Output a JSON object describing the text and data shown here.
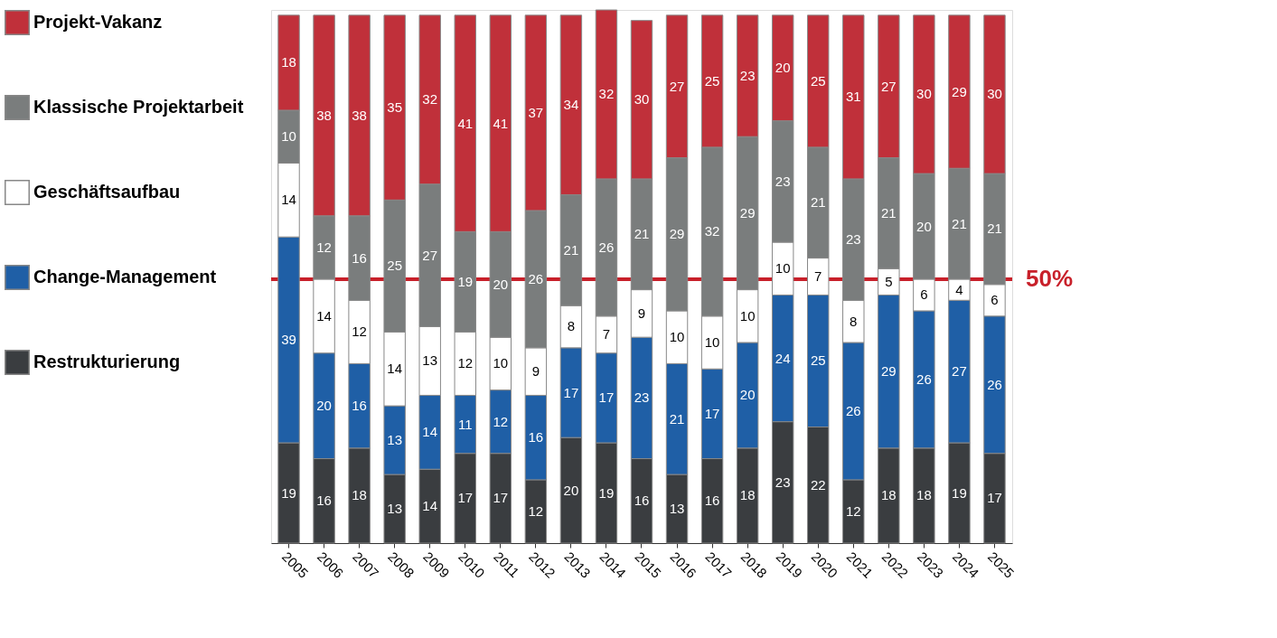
{
  "chart_data": {
    "type": "bar",
    "stacked": true,
    "data_labels": true,
    "legend": "left",
    "grid": false,
    "categories": [
      "2005",
      "2006",
      "2007",
      "2008",
      "2009",
      "2010",
      "2011",
      "2012",
      "2013",
      "2014",
      "2015",
      "2016",
      "2017",
      "2018",
      "2019",
      "2020",
      "2021",
      "2022",
      "2023",
      "2024",
      "2025"
    ],
    "series": [
      {
        "name": "Restrukturierung",
        "color": "#3a3d40",
        "values": [
          19,
          16,
          18,
          13,
          14,
          17,
          17,
          12,
          20,
          19,
          16,
          13,
          16,
          18,
          23,
          22,
          12,
          18,
          18,
          19,
          17
        ]
      },
      {
        "name": "Change-Management",
        "color": "#1f5fa6",
        "values": [
          39,
          20,
          16,
          13,
          14,
          11,
          12,
          16,
          17,
          17,
          23,
          21,
          17,
          20,
          24,
          25,
          26,
          29,
          26,
          27,
          26
        ]
      },
      {
        "name": "Geschäftsaufbau",
        "color": "#ffffff",
        "values": [
          14,
          14,
          12,
          14,
          13,
          12,
          10,
          9,
          8,
          7,
          9,
          10,
          10,
          10,
          10,
          7,
          8,
          5,
          6,
          4,
          6
        ]
      },
      {
        "name": "Klassische Projektarbeit",
        "color": "#7a7d7d",
        "values": [
          10,
          12,
          16,
          25,
          27,
          19,
          20,
          26,
          21,
          26,
          21,
          29,
          32,
          29,
          23,
          21,
          23,
          21,
          20,
          21,
          21
        ]
      },
      {
        "name": "Projekt-Vakanz",
        "color": "#c0303a",
        "values": [
          18,
          38,
          38,
          35,
          32,
          41,
          41,
          37,
          34,
          32,
          30,
          27,
          25,
          23,
          20,
          25,
          31,
          27,
          30,
          29,
          30
        ]
      }
    ],
    "ref_lines": [
      {
        "axis": "y",
        "value": 50,
        "label": "50%",
        "color": "#c8202a"
      }
    ]
  }
}
